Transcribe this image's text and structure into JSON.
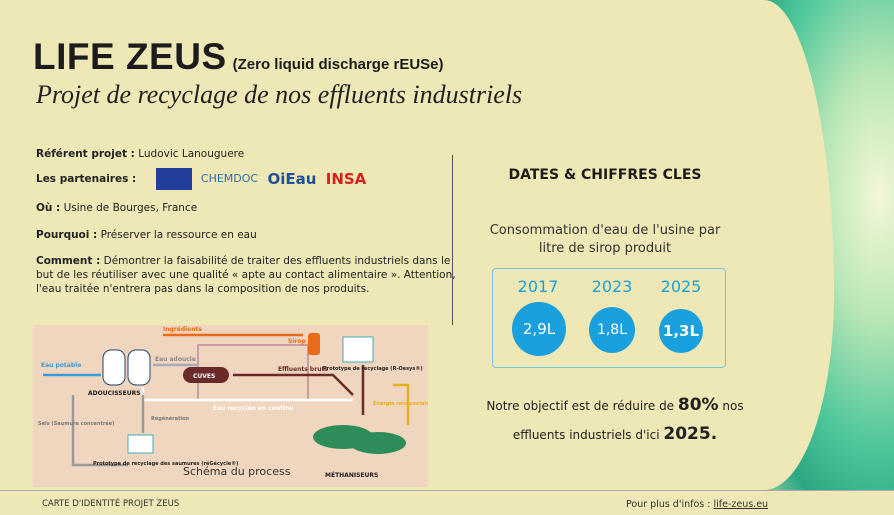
{
  "header": {
    "title": "LIFE ZEUS",
    "subtitle": "(Zero liquid discharge rEUSe)",
    "tagline": "Projet de recyclage de nos effluents industriels"
  },
  "info": {
    "referent_label": "Référent projet :",
    "referent": "Ludovic Lanouguere",
    "partners_label": "Les partenaires :",
    "partners": [
      "CHEMDOC",
      "OiEau",
      "INSA"
    ],
    "where_label": "Où :",
    "where": "Usine de Bourges, France",
    "why_label": "Pourquoi :",
    "why": "Préserver la ressource en eau",
    "how_label": "Comment :",
    "how": "Démontrer la faisabilité de traiter des effluents industriels dans le but de les réutiliser avec une qualité « apte au contact alimentaire ». Attention, l'eau traitée n'entrera pas dans la composition de nos produits."
  },
  "diagram": {
    "eau_potable": "Eau potable",
    "ingredients": "Ingrédients",
    "eau_adoucie": "Eau adoucie",
    "sirop": "Sirop",
    "cuves": "CUVES",
    "effluents": "Effluents bruts",
    "prototype": "Prototype de recyclage (R-Oesys®)",
    "adoucisseurs": "ADOUCISSEURS",
    "eau_recyclee": "Eau recyclée en continu",
    "regeneration": "Régénération",
    "sels": "Sels (Saumure concentrée)",
    "prototype_saumures": "Prototype de recyclage des saumures (réGécycle®)",
    "caption": "Schéma du process",
    "methaniseurs": "MÉTHANISEURS",
    "biogaz": "Énergie renouvelable"
  },
  "key_figures": {
    "title": "DATES & CHIFFRES CLES",
    "subtitle": "Consommation d'eau de l'usine par litre de sirop produit",
    "years": [
      "2017",
      "2023",
      "2025"
    ],
    "values": [
      "2,9L",
      "1,8L",
      "1,3L"
    ],
    "goal_1": "Notre objectif est de réduire de",
    "goal_pct": "80%",
    "goal_2": "nos",
    "goal_3": "effluents industriels d'ici",
    "goal_year": "2025."
  },
  "footer": {
    "left": "CARTE D'IDENTITÉ PROJET ZEUS",
    "right_label": "Pour plus d'infos :",
    "link": "life-zeus.eu"
  }
}
